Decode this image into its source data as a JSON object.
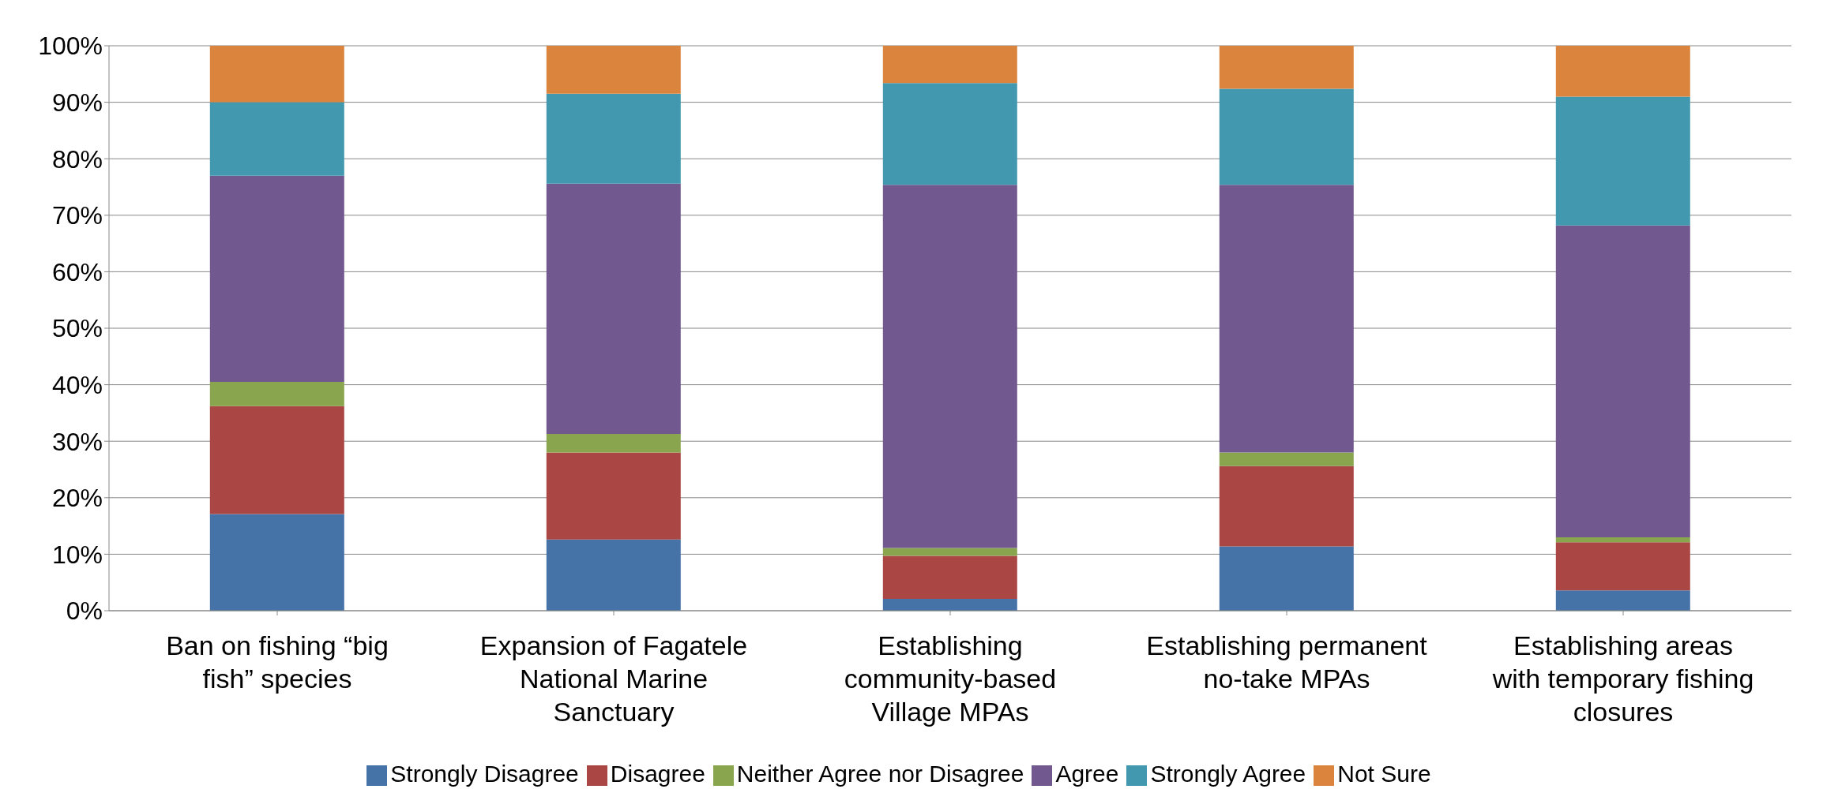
{
  "chart_data": {
    "type": "bar",
    "stacked": true,
    "categories": [
      "Ban on fishing “big fish” species",
      "Expansion of Fagatele National Marine Sanctuary",
      "Establishing community-based Village MPAs",
      "Establishing permanent no-take MPAs",
      "Establishing areas with temporary fishing closures"
    ],
    "series": [
      {
        "name": "Strongly Disagree",
        "color": "#4572a7",
        "values": [
          17.1,
          12.6,
          2.1,
          11.4,
          3.6
        ]
      },
      {
        "name": "Disagree",
        "color": "#aa4643",
        "values": [
          19.1,
          15.4,
          7.6,
          14.2,
          8.5
        ]
      },
      {
        "name": "Neither Agree nor Disagree",
        "color": "#89a54e",
        "values": [
          4.3,
          3.3,
          1.4,
          2.4,
          0.9
        ]
      },
      {
        "name": "Agree",
        "color": "#71588f",
        "values": [
          36.5,
          44.3,
          64.3,
          47.4,
          55.2
        ]
      },
      {
        "name": "Strongly Agree",
        "color": "#4198af",
        "values": [
          13.0,
          15.9,
          18.0,
          17.0,
          22.8
        ]
      },
      {
        "name": "Not Sure",
        "color": "#db843d",
        "values": [
          10.0,
          8.5,
          6.6,
          7.6,
          9.0
        ]
      }
    ],
    "ylim": [
      0,
      100
    ],
    "yticks": [
      {
        "value": 0,
        "label": "0%"
      },
      {
        "value": 10,
        "label": "10%"
      },
      {
        "value": 20,
        "label": "20%"
      },
      {
        "value": 30,
        "label": "30%"
      },
      {
        "value": 40,
        "label": "40%"
      },
      {
        "value": 50,
        "label": "50%"
      },
      {
        "value": 60,
        "label": "60%"
      },
      {
        "value": 70,
        "label": "70%"
      },
      {
        "value": 80,
        "label": "80%"
      },
      {
        "value": 90,
        "label": "90%"
      },
      {
        "value": 100,
        "label": "100%"
      }
    ],
    "grid": "y",
    "legend": "bottom"
  }
}
